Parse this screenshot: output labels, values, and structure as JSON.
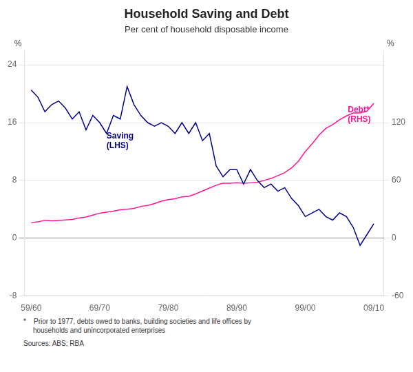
{
  "chart_data": {
    "type": "line",
    "title": "Household Saving and Debt",
    "subtitle": "Per cent of household disposable income",
    "ylabel": "%",
    "y2label": "%",
    "footnote": "*    Prior to 1977, debts owed to banks, building societies and life offices by\n     households and unincorporated enterprises",
    "sources": "Sources: ABS; RBA",
    "x": [
      1960,
      1961,
      1962,
      1963,
      1964,
      1965,
      1966,
      1967,
      1968,
      1969,
      1970,
      1971,
      1972,
      1973,
      1974,
      1975,
      1976,
      1977,
      1978,
      1979,
      1980,
      1981,
      1982,
      1983,
      1984,
      1985,
      1986,
      1987,
      1988,
      1989,
      1990,
      1991,
      1992,
      1993,
      1994,
      1995,
      1996,
      1997,
      1998,
      1999,
      2000,
      2001,
      2002,
      2003,
      2004,
      2005,
      2006,
      2007,
      2008,
      2009,
      2010
    ],
    "series": [
      {
        "color": "#00008B",
        "axis": "y",
        "values": [
          20.5,
          19.5,
          17.5,
          18.5,
          19.0,
          18.0,
          16.5,
          17.5,
          15.0,
          17.0,
          16.0,
          14.5,
          17.0,
          16.5,
          21.0,
          18.5,
          17.0,
          16.0,
          15.5,
          16.0,
          15.5,
          14.5,
          16.0,
          14.5,
          16.0,
          13.5,
          14.5,
          10.0,
          8.5,
          9.5,
          9.5,
          7.5,
          9.5,
          8.0,
          7.0,
          7.5,
          6.5,
          7.0,
          5.5,
          4.5,
          3.0,
          3.5,
          4.0,
          3.0,
          2.5,
          3.5,
          3.0,
          1.5,
          -1.0,
          0.5,
          2.0
        ]
      },
      {
        "color": "#FF1493",
        "axis": "y2",
        "values": [
          16.0,
          17.0,
          18.5,
          18.0,
          18.5,
          19.0,
          19.5,
          21.0,
          22.0,
          24.0,
          26.0,
          27.0,
          28.0,
          29.5,
          30.0,
          31.0,
          33.0,
          34.0,
          36.0,
          38.5,
          40.0,
          41.0,
          43.0,
          43.5,
          46.0,
          49.0,
          52.0,
          55.0,
          57.0,
          57.0,
          57.5,
          57.0,
          57.5,
          58.0,
          60.0,
          62.0,
          65.0,
          68.0,
          73.0,
          80.0,
          90.0,
          98.0,
          107.0,
          114.0,
          118.0,
          123.0,
          127.0,
          130.0,
          130.0,
          132.0,
          140.0
        ]
      }
    ],
    "annotations": [
      {
        "text": "Saving\n(LHS)",
        "x": 1971,
        "y": 13.5,
        "axis": "y",
        "color": "#00008B"
      },
      {
        "text": "Debt*\n(RHS)",
        "x": 2006.2,
        "y": 128,
        "axis": "y2",
        "color": "#FF1493"
      }
    ],
    "xlim": [
      1959,
      2011.5
    ],
    "xticks": [
      {
        "value": 1960,
        "label": "59/60"
      },
      {
        "value": 1970,
        "label": "69/70"
      },
      {
        "value": 1980,
        "label": "79/80"
      },
      {
        "value": 1990,
        "label": "89/90"
      },
      {
        "value": 2000,
        "label": "99/00"
      },
      {
        "value": 2010,
        "label": "09/10"
      }
    ],
    "ylim": [
      -8,
      26
    ],
    "yticks": [
      -8,
      0,
      8,
      16,
      24
    ],
    "y2lim": [
      -60,
      195
    ],
    "y2ticks": [
      -60,
      0,
      60,
      120
    ],
    "grid": true,
    "legend": false
  }
}
